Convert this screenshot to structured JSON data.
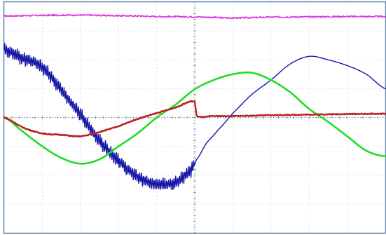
{
  "chart_data": {
    "type": "line",
    "title": "",
    "xlabel": "",
    "ylabel": "",
    "xlim": [
      0,
      10
    ],
    "ylim": [
      -4,
      4
    ],
    "grid": true,
    "legend": "none",
    "series": [
      {
        "color": "#dd33dd",
        "x": [
          0,
          1,
          2,
          3,
          3.5,
          4,
          5,
          5.5,
          6,
          7,
          8,
          9,
          10
        ],
        "y": [
          3.52,
          3.54,
          3.55,
          3.53,
          3.52,
          3.5,
          3.49,
          3.47,
          3.45,
          3.48,
          3.49,
          3.5,
          3.5
        ]
      },
      {
        "color": "#1515a8",
        "x": [
          0,
          0.5,
          1,
          1.5,
          2,
          2.5,
          3,
          3.5,
          4,
          4.5,
          4.9,
          5.0,
          5.05,
          5.3,
          5.6,
          6.0,
          6.5,
          7.0,
          7.5,
          8.0,
          8.5,
          9.0,
          9.5,
          10
        ],
        "y": [
          2.35,
          2.05,
          1.75,
          0.95,
          0.1,
          -0.8,
          -1.5,
          -2.05,
          -2.3,
          -2.25,
          -1.85,
          -1.6,
          -1.45,
          -0.9,
          -0.45,
          0.15,
          0.8,
          1.3,
          1.85,
          2.12,
          2.0,
          1.8,
          1.5,
          1.0
        ]
      },
      {
        "color": "#22dd22",
        "x": [
          0,
          0.5,
          1,
          1.5,
          2,
          2.5,
          3,
          3.5,
          4,
          4.5,
          5,
          5.5,
          6,
          6.5,
          7,
          7.5,
          8,
          8.5,
          9,
          9.5,
          10
        ],
        "y": [
          0.0,
          -0.5,
          -1.0,
          -1.4,
          -1.6,
          -1.45,
          -1.0,
          -0.55,
          0.0,
          0.45,
          0.98,
          1.3,
          1.5,
          1.55,
          1.3,
          0.88,
          0.3,
          -0.15,
          -0.65,
          -1.15,
          -1.35
        ]
      },
      {
        "color": "#bb2222",
        "x": [
          0,
          0.5,
          1,
          1.5,
          2,
          2.5,
          3,
          3.5,
          4,
          4.5,
          5.0,
          5.05,
          5.5,
          6,
          7,
          8,
          9,
          10
        ],
        "y": [
          0.0,
          -0.35,
          -0.55,
          -0.6,
          -0.65,
          -0.5,
          -0.3,
          -0.05,
          0.15,
          0.35,
          0.55,
          0.05,
          0.05,
          0.05,
          0.08,
          0.1,
          0.12,
          0.13
        ]
      }
    ]
  }
}
